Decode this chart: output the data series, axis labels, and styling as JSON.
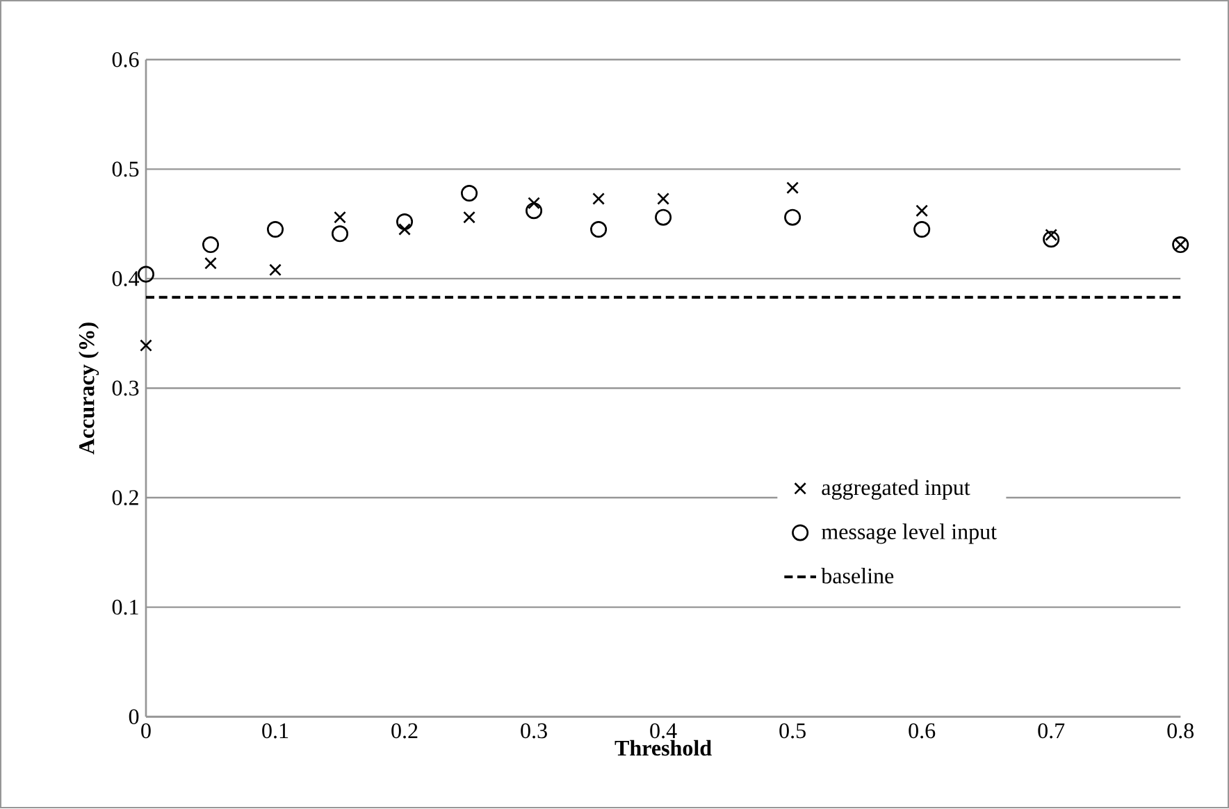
{
  "chart_data": {
    "type": "scatter",
    "xlabel": "Threshold",
    "ylabel": "Accuracy (%)",
    "x": [
      0,
      0.05,
      0.1,
      0.15,
      0.2,
      0.25,
      0.3,
      0.35,
      0.4,
      0.5,
      0.6,
      0.7,
      0.8
    ],
    "series": [
      {
        "name": "aggregated input",
        "color": "#000000",
        "marker": "cross",
        "values": [
          0.339,
          0.414,
          0.408,
          0.456,
          0.445,
          0.456,
          0.469,
          0.473,
          0.473,
          0.483,
          0.462,
          0.44,
          0.431
        ]
      },
      {
        "name": "message level input",
        "color": "#000000",
        "marker": "circle",
        "values": [
          0.404,
          0.431,
          0.445,
          0.441,
          0.452,
          0.478,
          0.462,
          0.445,
          0.456,
          0.456,
          0.445,
          0.436,
          0.431
        ]
      }
    ],
    "ref_lines": [
      {
        "axis": "y",
        "value": 0.383,
        "label": "baseline",
        "color": "#000000",
        "line_style": "dashed"
      }
    ],
    "xlim": [
      0,
      0.8
    ],
    "ylim": [
      0,
      0.6
    ],
    "xticks": [
      0,
      0.1,
      0.2,
      0.3,
      0.4,
      0.5,
      0.6,
      0.7,
      0.8
    ],
    "yticks": [
      0,
      0.1,
      0.2,
      0.3,
      0.4,
      0.5,
      0.6
    ],
    "grid": "y",
    "legend": "right"
  }
}
